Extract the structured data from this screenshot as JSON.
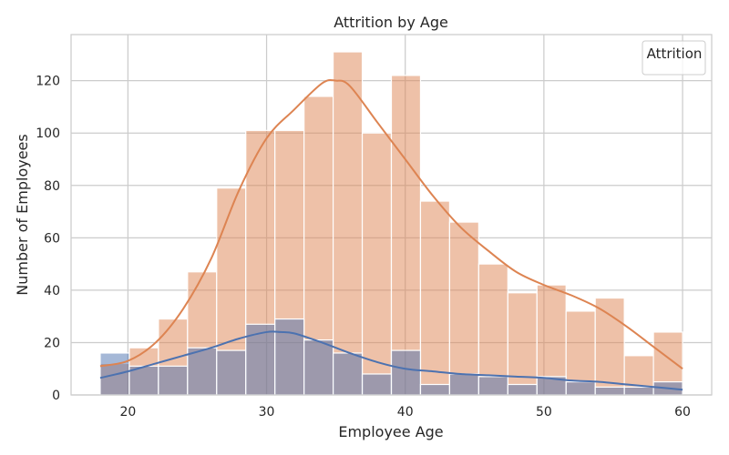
{
  "chart_data": {
    "type": "bar",
    "title": "Attrition by Age",
    "xlabel": "Employee Age",
    "ylabel": "Number of Employees",
    "xlim": [
      15.9,
      62.1
    ],
    "ylim": [
      0,
      137.6
    ],
    "xticks": [
      20,
      30,
      40,
      50,
      60
    ],
    "yticks": [
      0,
      20,
      40,
      60,
      80,
      100,
      120
    ],
    "bin_edges": [
      18,
      20.1,
      22.2,
      24.3,
      26.4,
      28.5,
      30.6,
      32.7,
      34.8,
      36.9,
      39,
      41.1,
      43.2,
      45.3,
      47.4,
      49.5,
      51.6,
      53.7,
      55.8,
      57.9,
      60
    ],
    "legend": {
      "title": "Attrition",
      "placement": "top-right"
    },
    "grid": true,
    "series": [
      {
        "color": "#dd8452",
        "values": [
          12,
          18,
          29,
          47,
          79,
          101,
          101,
          114,
          131,
          100,
          122,
          74,
          66,
          50,
          39,
          42,
          32,
          37,
          15,
          24
        ],
        "kde": [
          [
            18,
            11
          ],
          [
            20,
            13
          ],
          [
            22,
            20
          ],
          [
            24,
            33
          ],
          [
            26,
            52
          ],
          [
            28,
            78
          ],
          [
            30,
            98
          ],
          [
            32,
            109
          ],
          [
            34,
            119
          ],
          [
            35,
            120
          ],
          [
            36,
            118
          ],
          [
            38,
            104
          ],
          [
            40,
            90
          ],
          [
            42,
            76
          ],
          [
            44,
            64
          ],
          [
            46,
            55
          ],
          [
            48,
            47
          ],
          [
            50,
            42
          ],
          [
            52,
            38
          ],
          [
            54,
            33
          ],
          [
            56,
            26
          ],
          [
            58,
            18
          ],
          [
            60,
            10
          ]
        ]
      },
      {
        "color": "#4c72b0",
        "values": [
          16,
          11,
          11,
          18,
          17,
          27,
          29,
          21,
          16,
          8,
          17,
          4,
          8,
          7,
          4,
          7,
          5,
          3,
          3,
          5
        ],
        "kde": [
          [
            18,
            6.5
          ],
          [
            20,
            9
          ],
          [
            22,
            12
          ],
          [
            24,
            15
          ],
          [
            26,
            18
          ],
          [
            28,
            21.5
          ],
          [
            30,
            24
          ],
          [
            31,
            24
          ],
          [
            32,
            23.5
          ],
          [
            34,
            20
          ],
          [
            36,
            16
          ],
          [
            38,
            12.5
          ],
          [
            40,
            10
          ],
          [
            42,
            9
          ],
          [
            44,
            8
          ],
          [
            46,
            7.5
          ],
          [
            48,
            7
          ],
          [
            50,
            6.5
          ],
          [
            52,
            5.5
          ],
          [
            54,
            5
          ],
          [
            56,
            4
          ],
          [
            58,
            3
          ],
          [
            60,
            2
          ]
        ]
      }
    ]
  }
}
